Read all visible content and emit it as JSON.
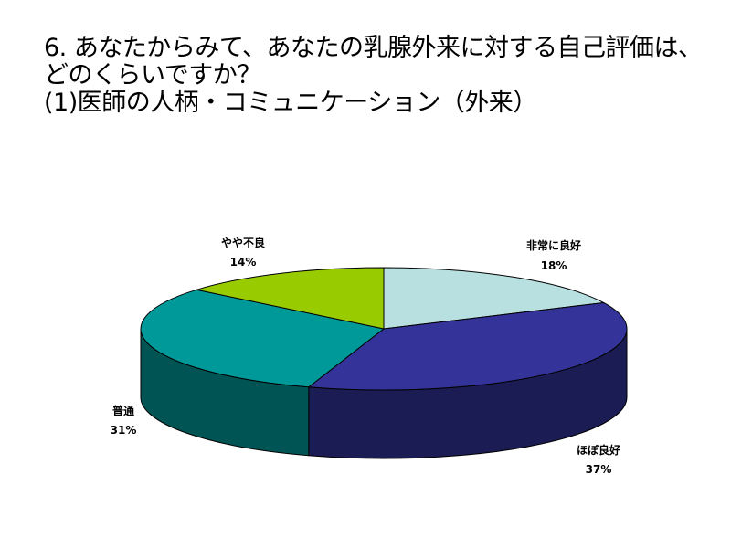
{
  "title_lines": [
    "6. あなたからみて、あなたの乳腺外来に対する自己評価は、",
    "どのくらいですか？",
    "(1)医師の人柄・コミュニケーション（外来）"
  ],
  "chart_data": {
    "type": "pie",
    "style": "3d",
    "legend": "none",
    "title": "6. あなたからみて、あなたの乳腺外来に対する自己評価は、どのくらいですか？ (1)医師の人柄・コミュニケーション（外来）",
    "slices": [
      {
        "name": "非常に良好",
        "value": 18,
        "label": "18%",
        "color": "#B8E0E0"
      },
      {
        "name": "ほぼ良好",
        "value": 37,
        "label": "37%",
        "color": "#333399"
      },
      {
        "name": "普通",
        "value": 31,
        "label": "31%",
        "color": "#009999"
      },
      {
        "name": "やや不良",
        "value": 14,
        "label": "14%",
        "color": "#99CC00"
      }
    ]
  }
}
